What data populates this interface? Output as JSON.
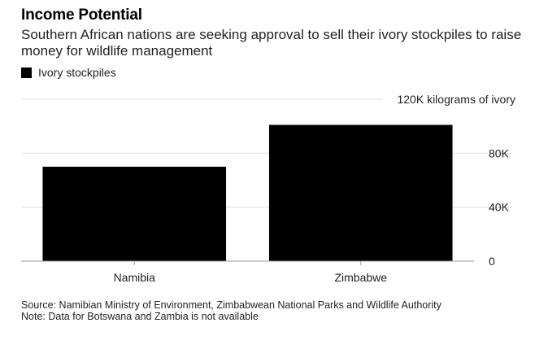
{
  "chart_data": {
    "type": "bar",
    "title": "Income Potential",
    "subtitle": "Southern African nations are seeking approval to sell their ivory stockpiles to raise money for wildlife management",
    "legend": [
      "Ivory stockpiles"
    ],
    "categories": [
      "Namibia",
      "Zimbabwe"
    ],
    "series": [
      {
        "name": "Ivory stockpiles",
        "values": [
          70000,
          101000
        ]
      }
    ],
    "ylim": [
      0,
      120000
    ],
    "yticks": [
      {
        "value": 0,
        "label": "0"
      },
      {
        "value": 40000,
        "label": "40K"
      },
      {
        "value": 80000,
        "label": "80K"
      },
      {
        "value": 120000,
        "label": "120K kilograms of ivory"
      }
    ],
    "xlabel": "",
    "ylabel": "kilograms of ivory",
    "bar_color": "#000000",
    "grid_color": "#dddddd",
    "axis_color": "#999999"
  },
  "footer": {
    "source": "Source: Namibian Ministry of Environment, Zimbabwean National Parks and Wildlife Authority",
    "note": "Note: Data for Botswana and Zambia is not available"
  }
}
